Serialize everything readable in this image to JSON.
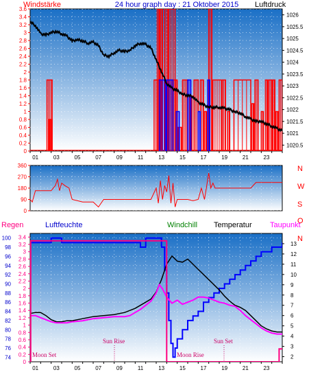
{
  "header": {
    "left": "Windstärke",
    "center": "24 hour graph day : 21 Oktober 2015",
    "right": "Luftdruck"
  },
  "wind_dir_labels": [
    "N",
    "W",
    "S",
    "O",
    "N"
  ],
  "bottom_header": {
    "regen": "Regen",
    "luftfeuchte": "Luftfeuchte",
    "windchill": "Windchill",
    "temperatur": "Temperatur",
    "taupunkt": "Taupunkt"
  },
  "annotations": {
    "moon_set": "Moon Set",
    "sun_rise": "Sun Rise",
    "moon_rise": "Moon Rise",
    "sun_set": "Sun Set"
  },
  "colors": {
    "bg_top": "#1e78c8",
    "bg_bottom": "#ffffff",
    "wind": "#ff0000",
    "gust": "#0000ff",
    "pressure": "#000000",
    "wind_dir": "#ff0000",
    "temperature": "#000000",
    "humidity": "#0000ff",
    "dewpoint": "#ff00ff",
    "rain": "#ff0080"
  },
  "chart_data": [
    {
      "type": "line",
      "x_ticks": [
        "01",
        "03",
        "05",
        "07",
        "09",
        "11",
        "13",
        "15",
        "17",
        "19",
        "21",
        "23"
      ],
      "xlim": [
        0,
        24
      ],
      "left_axis": {
        "ylim": [
          0,
          3.6
        ],
        "ticks": [
          "0",
          "0.2",
          "0.4",
          "0.6",
          "0.8",
          "1",
          "1.2",
          "1.4",
          "1.6",
          "1.8",
          "2",
          "2.2",
          "2.4",
          "2.6",
          "2.8",
          "3",
          "3.2",
          "3.4",
          "3.6"
        ]
      },
      "right_axis": {
        "ylim": [
          1020.25,
          1026.25
        ],
        "ticks": [
          "1020.5",
          "1021",
          "1021.5",
          "1022",
          "1022.5",
          "1023",
          "1023.5",
          "1024",
          "1024.5",
          "1025",
          "1025.5",
          "1026"
        ]
      },
      "series": [
        {
          "role": "pressure",
          "axis": "right",
          "x": [
            0,
            0.5,
            1,
            1.5,
            2,
            2.5,
            3,
            3.5,
            4,
            4.5,
            5,
            5.5,
            6,
            6.5,
            7,
            7.5,
            8,
            8.5,
            9,
            9.5,
            10,
            10.5,
            11,
            11.5,
            12,
            12.5,
            13,
            13.5,
            14,
            14.5,
            15,
            15.5,
            16,
            16.5,
            17,
            17.5,
            18,
            18.5,
            19,
            19.5,
            20,
            20.5,
            21,
            21.5,
            22,
            22.5,
            23,
            23.5,
            24
          ],
          "y": [
            1025.7,
            1025.55,
            1025.2,
            1025.15,
            1025.25,
            1025.3,
            1025.2,
            1025.1,
            1024.9,
            1024.95,
            1024.9,
            1024.8,
            1024.85,
            1024.7,
            1024.3,
            1024.25,
            1024.4,
            1024.5,
            1024.45,
            1024.5,
            1024.7,
            1024.8,
            1024.75,
            1024.6,
            1024.1,
            1023.6,
            1023.1,
            1022.9,
            1022.8,
            1022.65,
            1022.6,
            1022.55,
            1022.3,
            1022.2,
            1022.1,
            1022.1,
            1022.1,
            1022.05,
            1022.0,
            1021.9,
            1021.85,
            1021.7,
            1021.6,
            1021.5,
            1021.5,
            1021.4,
            1021.3,
            1021.2,
            1021.1
          ]
        },
        {
          "role": "wind",
          "axis": "left",
          "segments": [
            [
              1.6,
              2.1,
              1.8
            ],
            [
              1.8,
              2.0,
              0.8
            ],
            [
              11.8,
              12.5,
              1.8
            ],
            [
              12.1,
              12.3,
              3.6
            ],
            [
              12.4,
              12.6,
              3.6
            ],
            [
              12.8,
              13.1,
              3.6
            ],
            [
              13.2,
              13.8,
              3.6
            ],
            [
              13.5,
              14.0,
              1.8
            ],
            [
              14.1,
              14.4,
              0.6
            ],
            [
              14.5,
              15.0,
              1.8
            ],
            [
              15.2,
              15.4,
              1.4
            ],
            [
              15.6,
              16.0,
              1.8
            ],
            [
              16.2,
              16.5,
              1.8
            ],
            [
              16.6,
              16.8,
              1.0
            ],
            [
              17.0,
              17.3,
              3.6
            ],
            [
              17.4,
              18.2,
              1.8
            ],
            [
              18.3,
              18.6,
              1.8
            ],
            [
              18.8,
              19.0,
              1.0
            ],
            [
              19.4,
              21.0,
              1.8
            ],
            [
              21.1,
              21.3,
              1.2
            ],
            [
              21.4,
              21.7,
              1.8
            ],
            [
              22.0,
              22.2,
              1.0
            ],
            [
              22.4,
              22.6,
              1.8
            ],
            [
              22.7,
              23.0,
              1.8
            ],
            [
              23.1,
              23.3,
              1.8
            ],
            [
              23.4,
              23.6,
              1.0
            ],
            [
              23.7,
              24.0,
              1.8
            ]
          ]
        },
        {
          "role": "gust",
          "axis": "left",
          "segments": [
            [
              12.3,
              12.9,
              1.8
            ],
            [
              13.0,
              13.6,
              1.8
            ],
            [
              13.9,
              14.2,
              1.0
            ],
            [
              15.0,
              15.3,
              1.8
            ],
            [
              16.0,
              16.2,
              1.0
            ],
            [
              16.9,
              17.1,
              1.8
            ]
          ]
        }
      ]
    },
    {
      "type": "line",
      "xlim": [
        0,
        24
      ],
      "ylim": [
        0,
        360
      ],
      "left_ticks": [
        "0",
        "90",
        "180",
        "270",
        "360"
      ],
      "series": [
        {
          "role": "wind_direction",
          "x": [
            0,
            0.2,
            0.5,
            1.0,
            1.5,
            2.0,
            2.4,
            2.6,
            2.8,
            3.0,
            3.3,
            3.7,
            4.0,
            5.0,
            6.0,
            6.5,
            7.0,
            8.0,
            9.0,
            10.0,
            11.0,
            11.5,
            12.0,
            12.2,
            12.4,
            12.6,
            12.8,
            13.0,
            13.2,
            13.4,
            13.6,
            13.8,
            14.0,
            14.5,
            15.0,
            15.5,
            16.0,
            16.3,
            16.6,
            17.0,
            17.2,
            17.4,
            17.6,
            18.0,
            19.0,
            20.0,
            21.0,
            21.5,
            22.0,
            23.0,
            24.0
          ],
          "y": [
            90,
            70,
            160,
            160,
            160,
            160,
            200,
            250,
            160,
            220,
            200,
            180,
            90,
            70,
            70,
            30,
            90,
            90,
            90,
            90,
            90,
            90,
            180,
            60,
            240,
            90,
            200,
            150,
            280,
            60,
            220,
            30,
            90,
            90,
            90,
            80,
            90,
            180,
            90,
            300,
            180,
            220,
            180,
            180,
            180,
            180,
            180,
            225,
            225,
            225,
            225
          ]
        }
      ]
    },
    {
      "type": "line",
      "x_ticks": [
        "01",
        "03",
        "05",
        "07",
        "09",
        "11",
        "13",
        "15",
        "17",
        "19",
        "21",
        "23"
      ],
      "xlim": [
        0,
        24
      ],
      "left_axis_humidity": {
        "ylim": [
          73,
          101
        ],
        "ticks": [
          "74",
          "76",
          "78",
          "80",
          "82",
          "84",
          "86",
          "88",
          "90",
          "92",
          "94",
          "96",
          "98",
          "100"
        ]
      },
      "left_axis_rain": {
        "ylim": [
          0,
          3.5
        ],
        "ticks": [
          "0",
          "0.2",
          "0.4",
          "0.6",
          "0.8",
          "1",
          "1.2",
          "1.4",
          "1.6",
          "1.8",
          "2",
          "2.2",
          "2.4",
          "2.6",
          "2.8",
          "3",
          "3.2",
          "3.4"
        ]
      },
      "right_axis_temperature": {
        "ylim": [
          1.5,
          14
        ],
        "ticks": [
          "2",
          "3",
          "4",
          "5",
          "6",
          "7",
          "8",
          "9",
          "10",
          "11",
          "12",
          "13"
        ]
      },
      "series": [
        {
          "role": "humidity",
          "axis": "humidity",
          "x": [
            0,
            1,
            2,
            3,
            4,
            5,
            6,
            7,
            8,
            9,
            10,
            10.5,
            11,
            12,
            12.5,
            12.8,
            13.0,
            13.2,
            13.4,
            13.6,
            13.8,
            14.0,
            14.5,
            15,
            15.5,
            16,
            16.5,
            17,
            17.5,
            18,
            18.5,
            19,
            19.5,
            20,
            20.5,
            21,
            21.5,
            22,
            22.5,
            23,
            23.5,
            24
          ],
          "y": [
            99,
            99,
            100,
            99,
            99,
            99,
            99,
            99,
            99,
            99,
            99,
            98,
            100,
            100,
            98,
            93,
            88,
            82,
            77,
            74,
            76,
            78,
            80,
            82,
            83,
            84,
            86,
            87,
            88,
            89,
            90,
            91,
            92,
            93,
            94,
            95,
            96,
            97,
            97,
            98,
            98,
            99
          ]
        },
        {
          "role": "temperature",
          "axis": "temperature",
          "x": [
            0,
            0.5,
            1,
            1.5,
            2,
            2.5,
            3,
            3.5,
            4,
            5,
            6,
            7,
            8,
            9,
            9.5,
            10,
            10.5,
            11,
            11.5,
            12,
            12.5,
            13,
            13.5,
            14,
            14.5,
            15,
            15.5,
            16,
            16.5,
            17,
            17.5,
            18,
            18.5,
            19,
            19.5,
            20,
            20.5,
            21,
            21.5,
            22,
            22.5,
            23,
            23.5,
            24
          ],
          "y": [
            6.2,
            6.3,
            6.3,
            6.0,
            5.6,
            5.4,
            5.4,
            5.5,
            5.5,
            5.7,
            5.9,
            6.0,
            6.1,
            6.3,
            6.5,
            6.7,
            7.0,
            7.3,
            7.6,
            8.3,
            9.5,
            11.0,
            11.8,
            11.3,
            11.2,
            11.5,
            11.0,
            10.5,
            10.0,
            9.5,
            9.0,
            8.5,
            7.9,
            7.4,
            7.0,
            6.8,
            6.5,
            6.0,
            5.5,
            5.0,
            4.7,
            4.5,
            4.4,
            4.4
          ]
        },
        {
          "role": "dewpoint",
          "axis": "temperature",
          "x": [
            0,
            0.5,
            1,
            1.5,
            2,
            2.5,
            3,
            3.5,
            4,
            5,
            6,
            7,
            8,
            9,
            9.5,
            10,
            10.5,
            11,
            11.5,
            12,
            12.3,
            12.6,
            13,
            13.5,
            14,
            14.5,
            15,
            15.5,
            16,
            16.5,
            17,
            17.5,
            18,
            18.5,
            19,
            19.5,
            20,
            20.5,
            21,
            21.5,
            22,
            22.5,
            23,
            23.5,
            24
          ],
          "y": [
            6.0,
            6.0,
            5.8,
            5.6,
            5.4,
            5.3,
            5.3,
            5.3,
            5.4,
            5.5,
            5.7,
            5.8,
            5.9,
            5.9,
            6.0,
            6.3,
            6.6,
            7.0,
            7.4,
            8.2,
            9.0,
            8.6,
            7.8,
            7.2,
            7.5,
            7.1,
            7.3,
            7.5,
            7.8,
            7.8,
            7.7,
            7.5,
            7.3,
            7.2,
            7.0,
            6.9,
            6.5,
            6.0,
            5.6,
            5.2,
            4.8,
            4.5,
            4.3,
            4.2,
            4.2
          ]
        },
        {
          "role": "rain",
          "axis": "rain",
          "x": [
            0,
            0.05,
            0.05,
            13.0,
            13.0,
            23.7,
            23.7,
            24
          ],
          "y": [
            0,
            0,
            3.3,
            3.3,
            0,
            0,
            0.35,
            0.35
          ]
        }
      ]
    }
  ]
}
